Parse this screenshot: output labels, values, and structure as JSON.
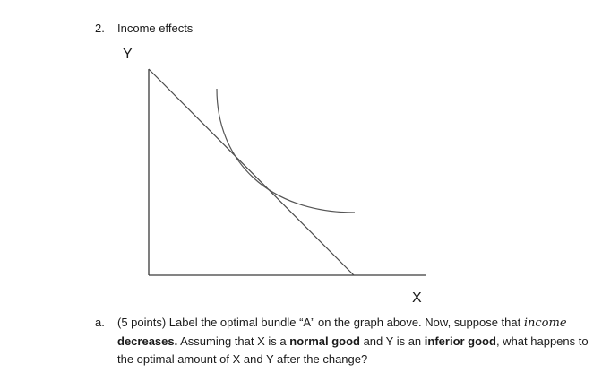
{
  "question": {
    "number": "2.",
    "title": "Income effects"
  },
  "graph": {
    "y_axis_label": "Y",
    "x_axis_label": "X"
  },
  "part_a": {
    "marker": "a.",
    "text_1": "(5 points) Label the optimal bundle “A” on the graph above. Now, suppose that ",
    "math_word": "income",
    "text_2": " decreases.",
    "text_3": " Assuming that X is a ",
    "bold_normal": "normal good",
    "text_4": " and Y is an ",
    "bold_inferior": "inferior good",
    "text_5": ", what happens to the optimal amount of X and Y after the change?"
  },
  "colors": {
    "axis": "#3a3a3a",
    "budget_line": "#4a4a4a",
    "indifference_curve": "#555555"
  }
}
